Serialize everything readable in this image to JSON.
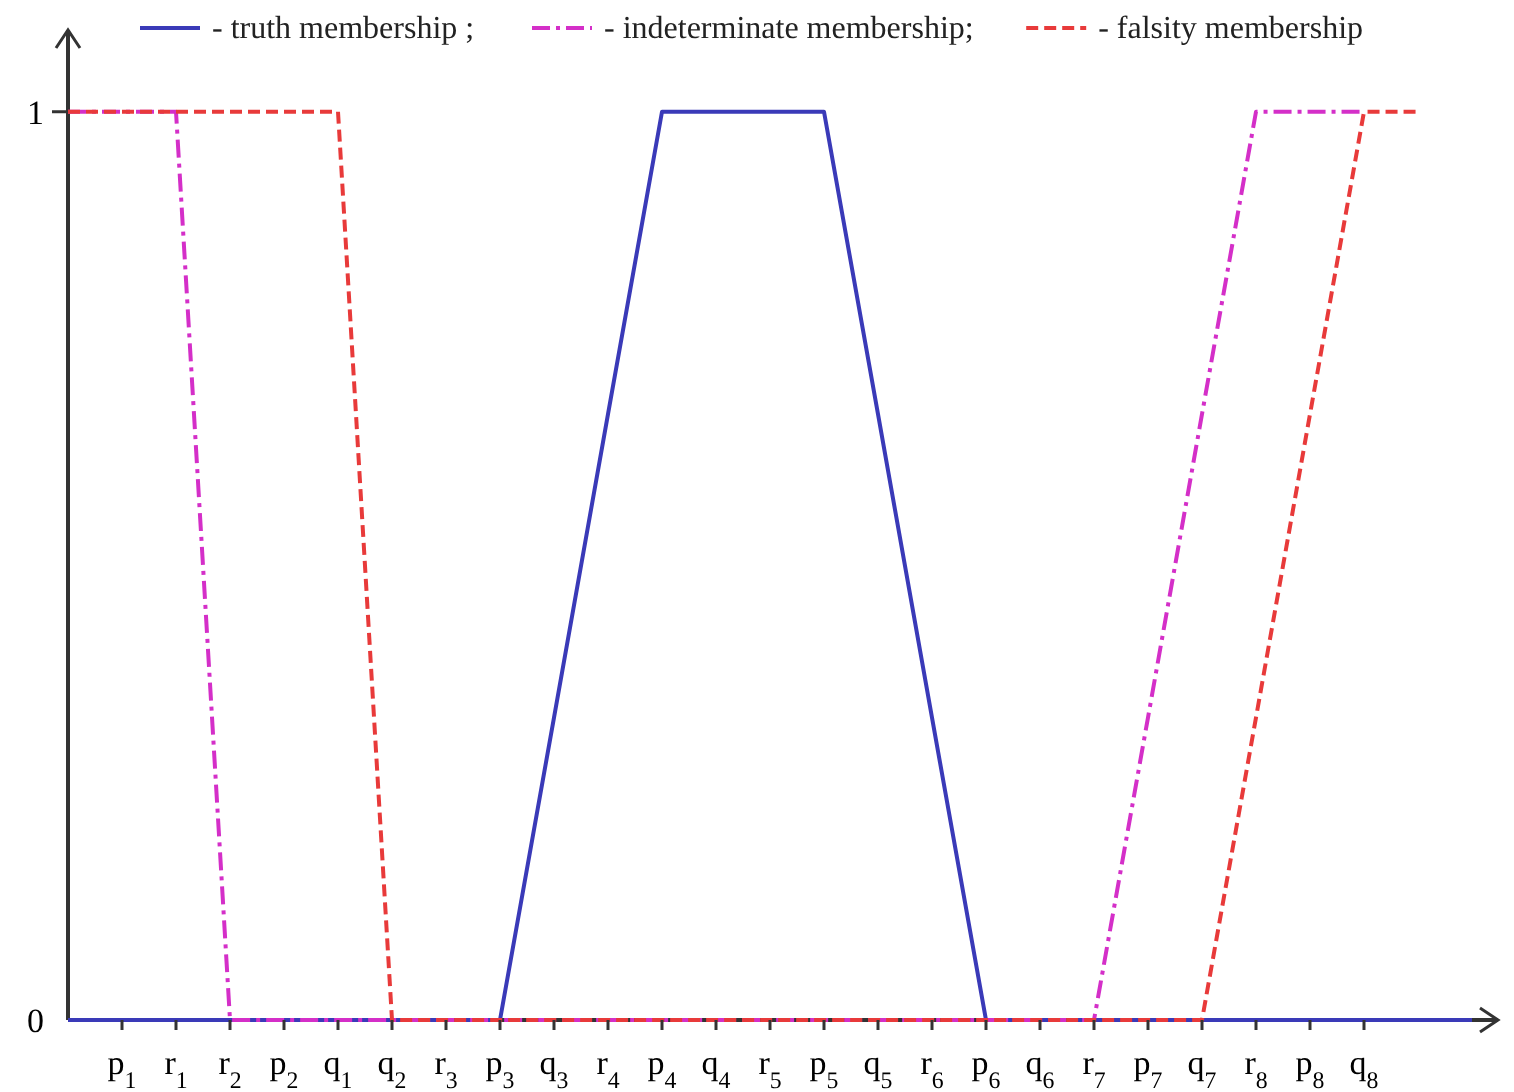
{
  "chart_data": {
    "type": "line",
    "categories": [
      null,
      "p$_{1}$",
      "r$_{1}$",
      "r$_{2}$",
      "p$_{2}$",
      "q$_{1}$",
      "q$_{2}$",
      "r$_{3}$",
      "p$_{3}$",
      "q$_{3}$",
      "r$_{4}$",
      "p$_{4}$",
      "q$_{4}$",
      "r$_{5}$",
      "p$_{5}$",
      "q$_{5}$",
      "r$_{6}$",
      "p$_{6}$",
      "q$_{6}$",
      "r$_{7}$",
      "p$_{7}$",
      "q$_{7}$",
      "r$_{8}$",
      "p$_{8}$",
      "q$_{8}$",
      null,
      null
    ],
    "series": [
      {
        "name": "- truth membership ;",
        "color": "#3a3ab8",
        "line_style": "solid",
        "values": [
          0,
          0,
          0,
          0,
          0,
          0,
          0,
          0,
          0,
          0.333,
          0.667,
          1,
          1,
          1,
          1,
          0.667,
          0.333,
          0,
          0,
          0,
          0,
          0,
          0,
          0,
          0,
          0,
          0
        ]
      },
      {
        "name": "- indeterminate membership;",
        "color": "#d42fc8",
        "line_style": "dashdot",
        "values": [
          1,
          1,
          1,
          0,
          0,
          0,
          0,
          0,
          0,
          0,
          0,
          0,
          0,
          0,
          0,
          0,
          0,
          0,
          0,
          0,
          0.333,
          0.667,
          1,
          1,
          1,
          null,
          null
        ]
      },
      {
        "name": "- falsity membership",
        "color": "#e83a3a",
        "line_style": "dashed",
        "values": [
          1,
          1,
          1,
          1,
          1,
          1,
          0,
          0,
          0,
          0,
          0,
          0,
          0,
          0,
          0,
          0,
          0,
          0,
          0,
          0,
          0,
          0,
          0.333,
          0.667,
          1,
          1,
          null
        ]
      }
    ],
    "ylim": [
      0,
      1.09
    ],
    "yticks": [
      0,
      1
    ],
    "grid": false,
    "legend": "top",
    "marker": "none"
  }
}
